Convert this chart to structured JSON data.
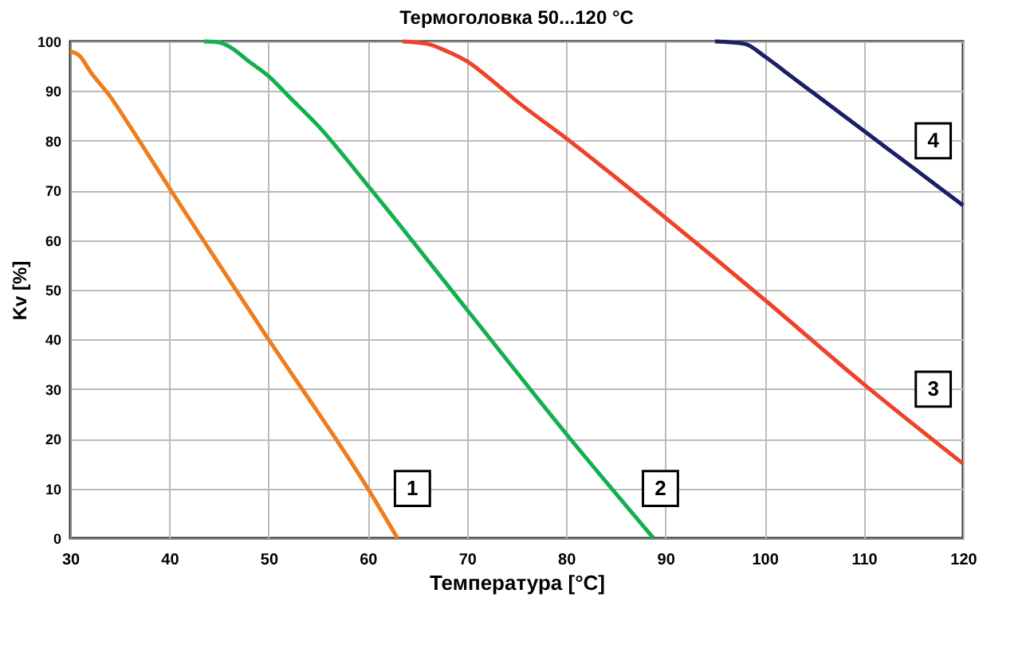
{
  "chart_data": {
    "type": "line",
    "title": "Термоголовка 50...120 °C",
    "xlabel": "Температура  [°C]",
    "ylabel": "Kv [%]",
    "xlim": [
      30,
      120
    ],
    "xticks": [
      30,
      40,
      50,
      60,
      70,
      80,
      90,
      100,
      110,
      120
    ],
    "ylim": [
      0,
      100
    ],
    "yticks": [
      0,
      10,
      20,
      30,
      40,
      50,
      60,
      70,
      80,
      90,
      100
    ],
    "grid": true,
    "line_style": "solid",
    "series": [
      {
        "color": "#ee7d1c",
        "x": [
          30,
          31,
          32,
          34,
          36,
          40,
          50,
          60,
          63
        ],
        "values": [
          98,
          97,
          94,
          89,
          83,
          70.5,
          40,
          10,
          0
        ]
      },
      {
        "color": "#12b04f",
        "x": [
          43.5,
          45,
          46,
          48,
          50,
          52,
          55,
          60,
          70,
          80,
          88.8
        ],
        "values": [
          100,
          99.8,
          99,
          96,
          93,
          89,
          83,
          71,
          46,
          21,
          0
        ]
      },
      {
        "color": "#f0412a",
        "x": [
          63.5,
          66,
          68,
          70,
          72,
          75,
          80,
          90,
          100,
          110,
          120
        ],
        "values": [
          100,
          99.5,
          98,
          96,
          93,
          88,
          80.5,
          64.5,
          48,
          31,
          15
        ]
      },
      {
        "color": "#1b1f66",
        "x": [
          95,
          98,
          100,
          102,
          105,
          110,
          115,
          120
        ],
        "values": [
          100,
          99.5,
          97,
          94,
          89.5,
          82,
          74.5,
          67
        ]
      }
    ],
    "annotations": [
      {
        "text": "1",
        "x": 64.5,
        "y": 10
      },
      {
        "text": "2",
        "x": 89.5,
        "y": 10
      },
      {
        "text": "3",
        "x": 117,
        "y": 30
      },
      {
        "text": "4",
        "x": 117,
        "y": 80
      }
    ]
  }
}
